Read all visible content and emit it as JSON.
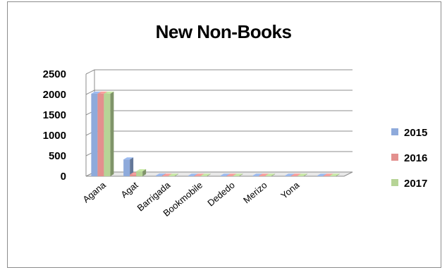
{
  "chart_data": {
    "type": "bar",
    "title": "New Non-Books",
    "categories": [
      "Agana",
      "Agat",
      "Barrigada",
      "Bookmobile",
      "Dededo",
      "Merizo",
      "Yona",
      ""
    ],
    "series": [
      {
        "name": "2015",
        "color": "#8eaadb",
        "values": [
          2020,
          410,
          15,
          10,
          10,
          10,
          10,
          10
        ]
      },
      {
        "name": "2016",
        "color": "#e3908e",
        "values": [
          2020,
          40,
          10,
          10,
          10,
          10,
          10,
          10
        ]
      },
      {
        "name": "2017",
        "color": "#b6d496",
        "values": [
          2020,
          120,
          10,
          10,
          10,
          10,
          10,
          10
        ]
      }
    ],
    "yticks": [
      0,
      500,
      1000,
      1500,
      2000,
      2500
    ],
    "ylim": [
      0,
      2500
    ],
    "grid": true,
    "legend_position": "right"
  }
}
